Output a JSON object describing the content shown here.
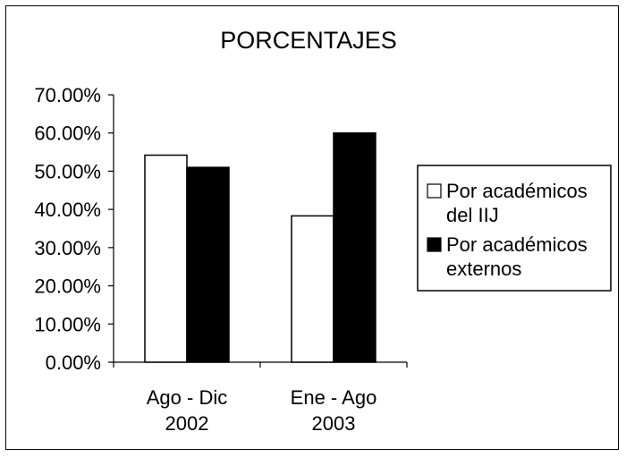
{
  "chart_data": {
    "type": "bar",
    "title": "PORCENTAJES",
    "xlabel": "",
    "ylabel": "",
    "categories": [
      [
        "Ago - Dic",
        "2002"
      ],
      [
        "Ene - Ago",
        "2003"
      ]
    ],
    "series": [
      {
        "name": "Por académicos del IIJ",
        "legend_lines": [
          "Por académicos",
          "del IIJ"
        ],
        "color": "#ffffff",
        "values": [
          54.2,
          38.3
        ]
      },
      {
        "name": "Por académicos externos",
        "legend_lines": [
          "Por académicos",
          "externos"
        ],
        "color": "#000000",
        "values": [
          51.0,
          60.0
        ]
      }
    ],
    "ylim": [
      0,
      70
    ],
    "yticks": [
      "0.00%",
      "10.00%",
      "20.00%",
      "30.00%",
      "40.00%",
      "50.00%",
      "60.00%",
      "70.00%"
    ],
    "grid": false,
    "legend_position": "right"
  }
}
